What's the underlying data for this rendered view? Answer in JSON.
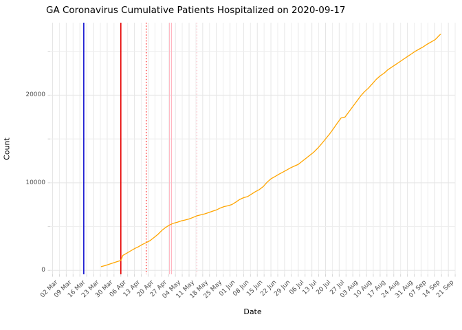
{
  "title": "GA Coronavirus Cumulative Patients Hospitalized on 2020-09-17",
  "chart_data": {
    "type": "line",
    "title": "GA Coronavirus Cumulative Patients Hospitalized on 2020-09-17",
    "xlabel": "Date",
    "ylabel": "Count",
    "grid": true,
    "legend": "none",
    "x_start_date": "2020-03-02",
    "x_tick_labels": [
      "02 Mar",
      "09 Mar",
      "16 Mar",
      "23 Mar",
      "30 Mar",
      "06 Apr",
      "13 Apr",
      "20 Apr",
      "27 Apr",
      "04 May",
      "11 May",
      "18 May",
      "25 May",
      "01 Jun",
      "08 Jun",
      "15 Jun",
      "22 Jun",
      "29 Jun",
      "06 Jul",
      "13 Jul",
      "20 Jul",
      "27 Jul",
      "03 Aug",
      "10 Aug",
      "17 Aug",
      "24 Aug",
      "31 Aug",
      "07 Sep",
      "14 Sep",
      "21 Sep"
    ],
    "y_ticks": [
      0,
      10000,
      20000
    ],
    "y_minor_ticks": [
      5000,
      15000,
      25000
    ],
    "ylim": [
      0,
      28500
    ],
    "colors": {
      "series": "#FFA500",
      "grid_major": "#E5E5E5",
      "grid_minor": "#EDEDED",
      "tick_mark": "#D5D5D5",
      "tick_text": "#4D4D4D"
    },
    "vlines": [
      {
        "date": "2020-03-18",
        "color": "#0000CC",
        "style": "solid",
        "width": 1.5,
        "name": "blue-event-line"
      },
      {
        "date": "2020-04-06",
        "color": "#E60000",
        "style": "solid",
        "width": 1.7,
        "name": "red-event-line"
      },
      {
        "date": "2020-04-19",
        "color": "#FF0000",
        "style": "dotted",
        "width": 1.2,
        "name": "red-dotted-event-line"
      },
      {
        "date": "2020-05-01",
        "color": "#FFB6C1",
        "style": "solid",
        "width": 1.1,
        "name": "pink-event-line-1"
      },
      {
        "date": "2020-05-02",
        "color": "#FFB6C1",
        "style": "solid",
        "width": 1.1,
        "name": "pink-event-line-2"
      },
      {
        "date": "2020-05-15",
        "color": "#FFB6C1",
        "style": "dotted",
        "width": 1.2,
        "name": "pink-dotted-event-line"
      }
    ],
    "series": [
      {
        "name": "cumulative_patients_hospitalized",
        "color": "#FFA500",
        "points": [
          [
            "2020-03-27",
            430
          ],
          [
            "2020-03-29",
            560
          ],
          [
            "2020-03-31",
            700
          ],
          [
            "2020-04-02",
            850
          ],
          [
            "2020-04-04",
            1000
          ],
          [
            "2020-04-06",
            1130
          ],
          [
            "2020-04-07",
            1700
          ],
          [
            "2020-04-09",
            1960
          ],
          [
            "2020-04-11",
            2220
          ],
          [
            "2020-04-13",
            2480
          ],
          [
            "2020-04-15",
            2700
          ],
          [
            "2020-04-17",
            2950
          ],
          [
            "2020-04-19",
            3170
          ],
          [
            "2020-04-21",
            3400
          ],
          [
            "2020-04-23",
            3750
          ],
          [
            "2020-04-25",
            4100
          ],
          [
            "2020-04-27",
            4550
          ],
          [
            "2020-04-29",
            4900
          ],
          [
            "2020-05-01",
            5180
          ],
          [
            "2020-05-03",
            5380
          ],
          [
            "2020-05-05",
            5500
          ],
          [
            "2020-05-07",
            5650
          ],
          [
            "2020-05-09",
            5750
          ],
          [
            "2020-05-11",
            5870
          ],
          [
            "2020-05-13",
            6040
          ],
          [
            "2020-05-15",
            6220
          ],
          [
            "2020-05-17",
            6340
          ],
          [
            "2020-05-19",
            6450
          ],
          [
            "2020-05-21",
            6600
          ],
          [
            "2020-05-23",
            6750
          ],
          [
            "2020-05-25",
            6900
          ],
          [
            "2020-05-27",
            7120
          ],
          [
            "2020-05-29",
            7280
          ],
          [
            "2020-05-31",
            7380
          ],
          [
            "2020-06-02",
            7520
          ],
          [
            "2020-06-04",
            7800
          ],
          [
            "2020-06-06",
            8100
          ],
          [
            "2020-06-08",
            8300
          ],
          [
            "2020-06-10",
            8420
          ],
          [
            "2020-06-12",
            8700
          ],
          [
            "2020-06-14",
            8980
          ],
          [
            "2020-06-16",
            9220
          ],
          [
            "2020-06-18",
            9560
          ],
          [
            "2020-06-20",
            10050
          ],
          [
            "2020-06-22",
            10450
          ],
          [
            "2020-06-24",
            10700
          ],
          [
            "2020-06-26",
            10960
          ],
          [
            "2020-06-28",
            11200
          ],
          [
            "2020-06-30",
            11450
          ],
          [
            "2020-07-02",
            11700
          ],
          [
            "2020-07-04",
            11900
          ],
          [
            "2020-07-06",
            12100
          ],
          [
            "2020-07-08",
            12450
          ],
          [
            "2020-07-10",
            12800
          ],
          [
            "2020-07-12",
            13150
          ],
          [
            "2020-07-14",
            13500
          ],
          [
            "2020-07-16",
            13950
          ],
          [
            "2020-07-18",
            14450
          ],
          [
            "2020-07-20",
            15000
          ],
          [
            "2020-07-22",
            15550
          ],
          [
            "2020-07-24",
            16150
          ],
          [
            "2020-07-26",
            16800
          ],
          [
            "2020-07-28",
            17400
          ],
          [
            "2020-07-30",
            17500
          ],
          [
            "2020-08-01",
            18100
          ],
          [
            "2020-08-03",
            18700
          ],
          [
            "2020-08-05",
            19300
          ],
          [
            "2020-08-07",
            19900
          ],
          [
            "2020-08-09",
            20400
          ],
          [
            "2020-08-11",
            20800
          ],
          [
            "2020-08-13",
            21300
          ],
          [
            "2020-08-15",
            21800
          ],
          [
            "2020-08-17",
            22200
          ],
          [
            "2020-08-19",
            22500
          ],
          [
            "2020-08-21",
            22900
          ],
          [
            "2020-08-23",
            23200
          ],
          [
            "2020-08-25",
            23500
          ],
          [
            "2020-08-27",
            23800
          ],
          [
            "2020-08-29",
            24100
          ],
          [
            "2020-08-31",
            24400
          ],
          [
            "2020-09-02",
            24700
          ],
          [
            "2020-09-04",
            25000
          ],
          [
            "2020-09-06",
            25250
          ],
          [
            "2020-09-08",
            25500
          ],
          [
            "2020-09-10",
            25800
          ],
          [
            "2020-09-12",
            26050
          ],
          [
            "2020-09-14",
            26300
          ],
          [
            "2020-09-15",
            26500
          ],
          [
            "2020-09-16",
            26750
          ],
          [
            "2020-09-17",
            26950
          ]
        ]
      }
    ]
  }
}
